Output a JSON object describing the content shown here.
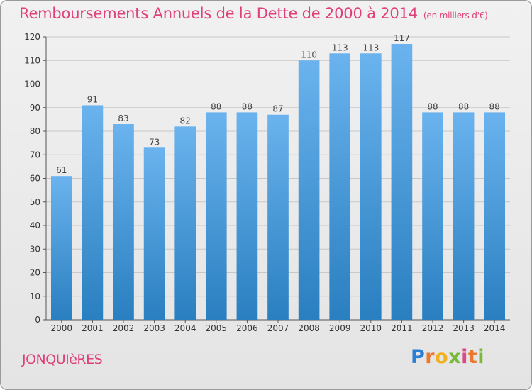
{
  "title": "Remboursements Annuels de la Dette de 2000 à 2014",
  "unit": "(en milliers d'€)",
  "town": "JONQUIèRES",
  "logo": "Proxiti",
  "colors": {
    "title": "#e0407a",
    "bar_top": "#6ab3ee",
    "bar_bottom": "#2a7fc0",
    "grid": "#c8c8c8",
    "background": "#e8e8e8"
  },
  "chart_data": {
    "type": "bar",
    "categories": [
      "2000",
      "2001",
      "2002",
      "2003",
      "2004",
      "2005",
      "2006",
      "2007",
      "2008",
      "2009",
      "2010",
      "2011",
      "2012",
      "2013",
      "2014"
    ],
    "values": [
      61,
      91,
      83,
      73,
      82,
      88,
      88,
      87,
      110,
      113,
      113,
      117,
      88,
      88,
      88
    ],
    "data_labels": [
      "61",
      "91",
      "83",
      "73",
      "82",
      "88",
      "88",
      "87",
      "110",
      "113",
      "113",
      "117",
      "88",
      "88",
      "88"
    ],
    "ylim": [
      0,
      120
    ],
    "yticks": [
      0,
      10,
      20,
      30,
      40,
      50,
      60,
      70,
      80,
      90,
      100,
      110,
      120
    ],
    "grid": true,
    "xlabel": "",
    "ylabel": ""
  }
}
